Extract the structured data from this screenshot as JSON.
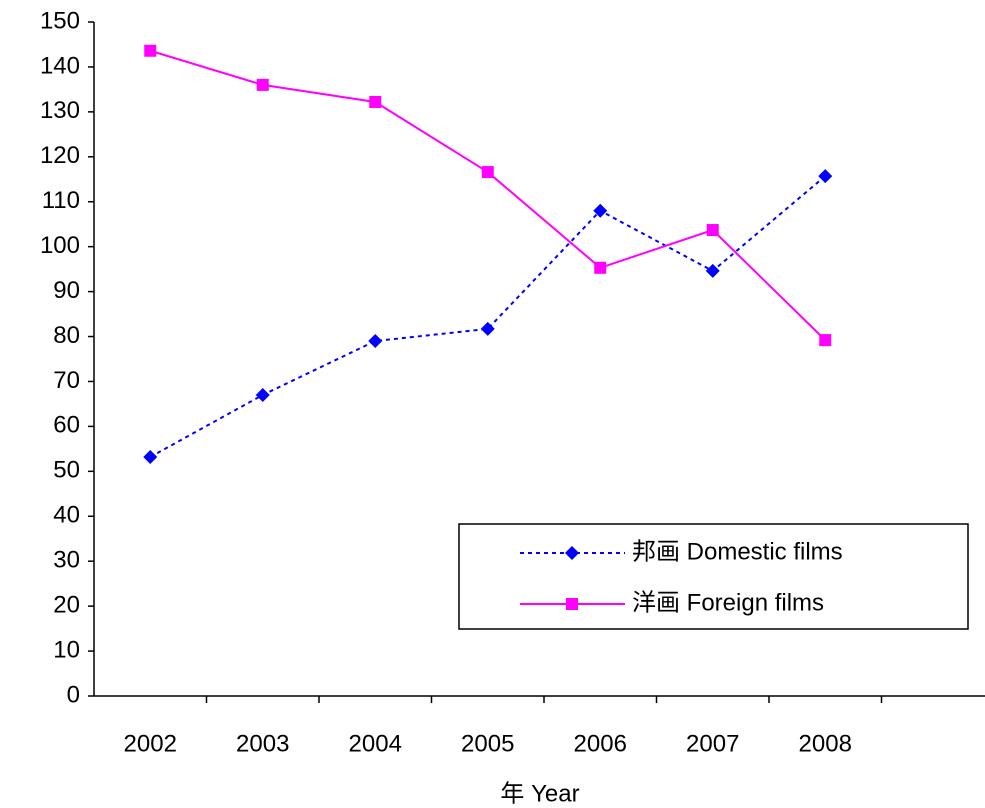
{
  "chart_data": {
    "type": "line",
    "x_label": "年 Year",
    "categories": [
      "2002",
      "2003",
      "2004",
      "2005",
      "2006",
      "2007",
      "2008",
      null
    ],
    "series": [
      {
        "name": "邦画 Domestic films",
        "color": "#0000ff",
        "marker": "diamond",
        "dash": "dotted",
        "values": [
          53.2,
          67,
          79,
          81.7,
          108,
          94.6,
          115.7,
          null
        ]
      },
      {
        "name": "洋画 Foreign films",
        "color": "#ff00ff",
        "marker": "square",
        "dash": "solid",
        "values": [
          143.6,
          136,
          132.2,
          116.6,
          95.3,
          103.7,
          79.2,
          null
        ]
      }
    ],
    "ylim": [
      0,
      150
    ],
    "yticks": [
      0,
      10,
      20,
      30,
      40,
      50,
      60,
      70,
      80,
      90,
      100,
      110,
      120,
      130,
      140,
      150
    ],
    "grid": false,
    "legend": "lower right"
  }
}
